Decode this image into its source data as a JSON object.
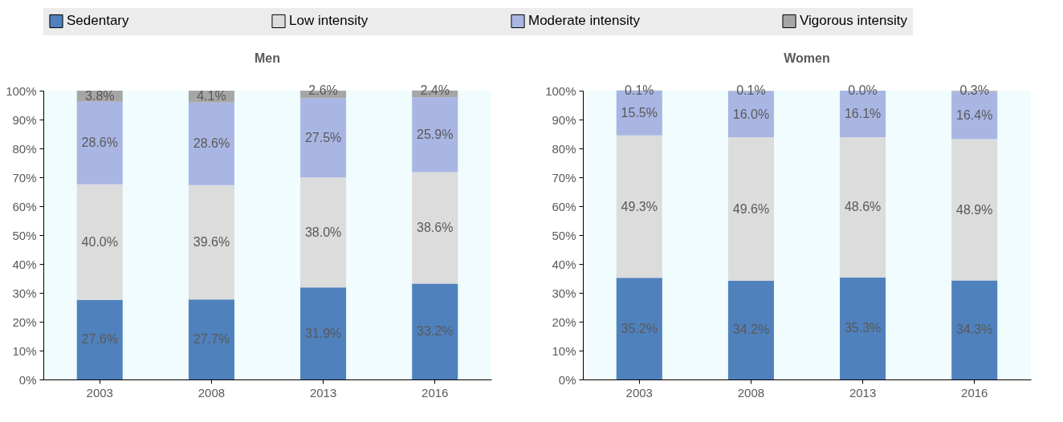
{
  "chart_data": [
    {
      "type": "bar",
      "title": "Men",
      "stacked": true,
      "legend": "top",
      "categories": [
        "2003",
        "2008",
        "2013",
        "2016"
      ],
      "ylim": [
        0,
        100
      ],
      "yticks": [
        {
          "value": 0,
          "label": "0%"
        },
        {
          "value": 10,
          "label": "10%"
        },
        {
          "value": 20,
          "label": "20%"
        },
        {
          "value": 30,
          "label": "30%"
        },
        {
          "value": 40,
          "label": "40%"
        },
        {
          "value": 50,
          "label": "50%"
        },
        {
          "value": 60,
          "label": "60%"
        },
        {
          "value": 70,
          "label": "70%"
        },
        {
          "value": 80,
          "label": "80%"
        },
        {
          "value": 90,
          "label": "90%"
        },
        {
          "value": 100,
          "label": "100%"
        }
      ],
      "series": [
        {
          "name": "Sedentary",
          "color": "#4f81bd",
          "values": [
            27.6,
            27.7,
            31.9,
            33.2
          ],
          "value_labels": [
            "27.6%",
            "27.7%",
            "31.9%",
            "33.2%"
          ]
        },
        {
          "name": "Low intensity",
          "color": "#dcdcdc",
          "values": [
            40.0,
            39.6,
            38.0,
            38.6
          ],
          "value_labels": [
            "40.0%",
            "39.6%",
            "38.0%",
            "38.6%"
          ]
        },
        {
          "name": "Moderate intensity",
          "color": "#a9b6e3",
          "values": [
            28.6,
            28.6,
            27.5,
            25.9
          ],
          "value_labels": [
            "28.6%",
            "28.6%",
            "27.5%",
            "25.9%"
          ]
        },
        {
          "name": "Vigorous intensity",
          "color": "#a6a6a6",
          "values": [
            3.8,
            4.1,
            2.6,
            2.4
          ],
          "value_labels": [
            "3.8%",
            "4.1%",
            "2.6%",
            "2.4%"
          ]
        }
      ]
    },
    {
      "type": "bar",
      "title": "Women",
      "stacked": true,
      "categories": [
        "2003",
        "2008",
        "2013",
        "2016"
      ],
      "ylim": [
        0,
        100
      ],
      "yticks": [
        {
          "value": 0,
          "label": "0%"
        },
        {
          "value": 10,
          "label": "10%"
        },
        {
          "value": 20,
          "label": "20%"
        },
        {
          "value": 30,
          "label": "30%"
        },
        {
          "value": 40,
          "label": "40%"
        },
        {
          "value": 50,
          "label": "50%"
        },
        {
          "value": 60,
          "label": "60%"
        },
        {
          "value": 70,
          "label": "70%"
        },
        {
          "value": 80,
          "label": "80%"
        },
        {
          "value": 90,
          "label": "90%"
        },
        {
          "value": 100,
          "label": "100%"
        }
      ],
      "series": [
        {
          "name": "Sedentary",
          "color": "#4f81bd",
          "values": [
            35.2,
            34.2,
            35.3,
            34.3
          ],
          "value_labels": [
            "35.2%",
            "34.2%",
            "35.3%",
            "34.3%"
          ]
        },
        {
          "name": "Low intensity",
          "color": "#dcdcdc",
          "values": [
            49.3,
            49.6,
            48.6,
            48.9
          ],
          "value_labels": [
            "49.3%",
            "49.6%",
            "48.6%",
            "48.9%"
          ]
        },
        {
          "name": "Moderate intensity",
          "color": "#a9b6e3",
          "values": [
            15.5,
            16.0,
            16.1,
            16.4
          ],
          "value_labels": [
            "15.5%",
            "16.0%",
            "16.1%",
            "16.4%"
          ]
        },
        {
          "name": "Vigorous intensity",
          "color": "#a6a6a6",
          "values": [
            0.1,
            0.1,
            0.0,
            0.3
          ],
          "value_labels": [
            "0.1%",
            "0.1%",
            "0.0%",
            "0.3%"
          ]
        }
      ]
    }
  ]
}
